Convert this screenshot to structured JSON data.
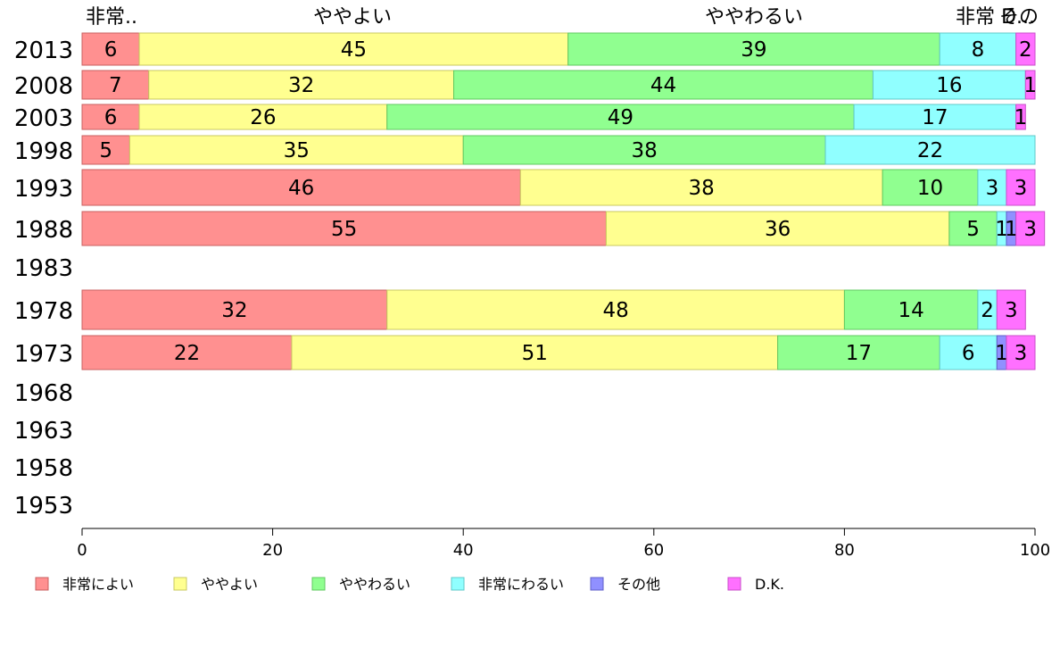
{
  "chart_data": {
    "type": "bar",
    "orientation": "horizontal",
    "stacked": true,
    "xlim": [
      0,
      100
    ],
    "xticks": [
      0,
      20,
      40,
      60,
      80,
      100
    ],
    "grid": false,
    "legend_position": "bottom",
    "top_labels": [
      {
        "text": "非常..",
        "at": 0
      },
      {
        "text": "ややよい",
        "at": 1
      },
      {
        "text": "ややわるい",
        "at": 2
      },
      {
        "text": "非常",
        "at": 3
      },
      {
        "text": "その",
        "at": 4
      },
      {
        "text": "D...",
        "at": 5
      }
    ],
    "series": [
      {
        "name": "非常によい",
        "color": "#ff9090"
      },
      {
        "name": "ややよい",
        "color": "#ffff90"
      },
      {
        "name": "ややわるい",
        "color": "#90ff90"
      },
      {
        "name": "非常にわるい",
        "color": "#90ffff"
      },
      {
        "name": "その他",
        "color": "#9090ff"
      },
      {
        "name": "D.K.",
        "color": "#ff70ff"
      }
    ],
    "categories": [
      "2013",
      "2008",
      "2003",
      "1998",
      "1993",
      "1988",
      "1983",
      "1978",
      "1973",
      "1968",
      "1963",
      "1958",
      "1953"
    ],
    "rows": [
      {
        "year": "2013",
        "values": [
          6,
          45,
          39,
          8,
          0,
          2
        ],
        "labels": [
          "6",
          "45",
          "39",
          "8",
          "",
          "2"
        ]
      },
      {
        "year": "2008",
        "values": [
          7,
          32,
          44,
          16,
          0,
          1
        ],
        "labels": [
          "7",
          "32",
          "44",
          "16",
          "",
          "1"
        ]
      },
      {
        "year": "2003",
        "values": [
          6,
          26,
          49,
          17,
          0,
          1
        ],
        "labels": [
          "6",
          "26",
          "49",
          "17",
          "",
          "1"
        ]
      },
      {
        "year": "1998",
        "values": [
          5,
          35,
          38,
          22,
          0,
          0
        ],
        "labels": [
          "5",
          "35",
          "38",
          "22",
          "",
          ""
        ]
      },
      {
        "year": "1993",
        "values": [
          46,
          38,
          10,
          3,
          0,
          3
        ],
        "labels": [
          "46",
          "38",
          "10",
          "3",
          "",
          "3"
        ]
      },
      {
        "year": "1988",
        "values": [
          55,
          36,
          5,
          1,
          1,
          3
        ],
        "labels": [
          "55",
          "36",
          "5",
          "1",
          "1",
          "3"
        ]
      },
      {
        "year": "1983",
        "values": null,
        "labels": []
      },
      {
        "year": "1978",
        "values": [
          32,
          48,
          14,
          2,
          0,
          3
        ],
        "labels": [
          "32",
          "48",
          "14",
          "2",
          "",
          "3"
        ]
      },
      {
        "year": "1973",
        "values": [
          22,
          51,
          17,
          6,
          1,
          3
        ],
        "labels": [
          "22",
          "51",
          "17",
          "6",
          "1",
          "3"
        ]
      },
      {
        "year": "1968",
        "values": null,
        "labels": []
      },
      {
        "year": "1963",
        "values": null,
        "labels": []
      },
      {
        "year": "1958",
        "values": null,
        "labels": []
      },
      {
        "year": "1953",
        "values": null,
        "labels": []
      }
    ]
  }
}
